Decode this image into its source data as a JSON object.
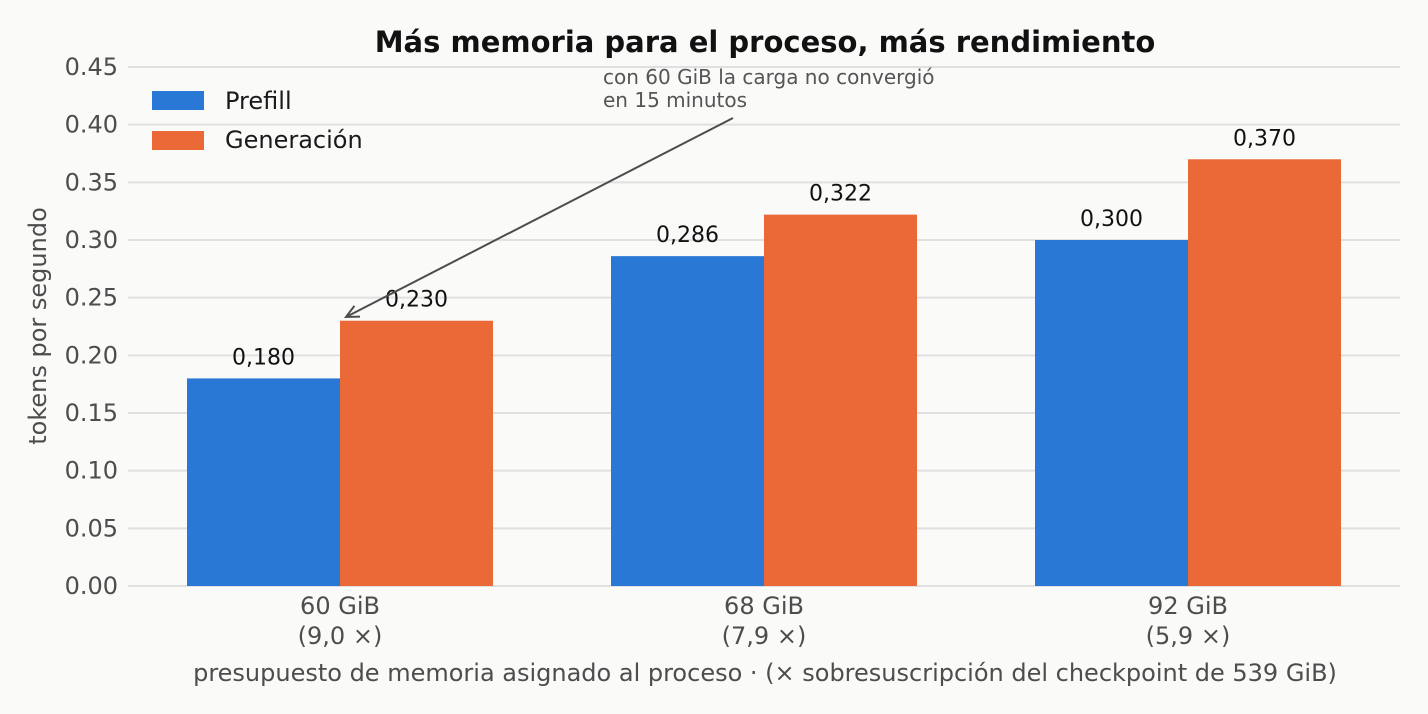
{
  "chart_data": {
    "type": "bar",
    "title": "Más memoria para el proceso, más rendimiento",
    "xlabel": "presupuesto de memoria asignado al proceso  ·  (× sobresuscripción del checkpoint de 539 GiB)",
    "ylabel": "tokens por segundo",
    "categories": [
      {
        "line1": "60 GiB",
        "line2": "(9,0 ×)"
      },
      {
        "line1": "68 GiB",
        "line2": "(7,9 ×)"
      },
      {
        "line1": "92 GiB",
        "line2": "(5,9 ×)"
      }
    ],
    "series": [
      {
        "name": "Prefill",
        "color": "#2a78d6",
        "values": [
          0.18,
          0.286,
          0.3
        ],
        "labels": [
          "0,180",
          "0,286",
          "0,300"
        ]
      },
      {
        "name": "Generación",
        "color": "#ea6936",
        "values": [
          0.23,
          0.322,
          0.37
        ],
        "labels": [
          "0,230",
          "0,322",
          "0,370"
        ]
      }
    ],
    "ylim": [
      0,
      0.45
    ],
    "yticks": [
      "0.00",
      "0.05",
      "0.10",
      "0.15",
      "0.20",
      "0.25",
      "0.30",
      "0.35",
      "0.40",
      "0.45"
    ],
    "grid": true,
    "legend_position": "top-left",
    "annotation": {
      "lines": [
        "con 60 GiB la carga no convergió",
        "en 15 minutos"
      ],
      "target": {
        "category": 0,
        "series": 1
      }
    }
  }
}
